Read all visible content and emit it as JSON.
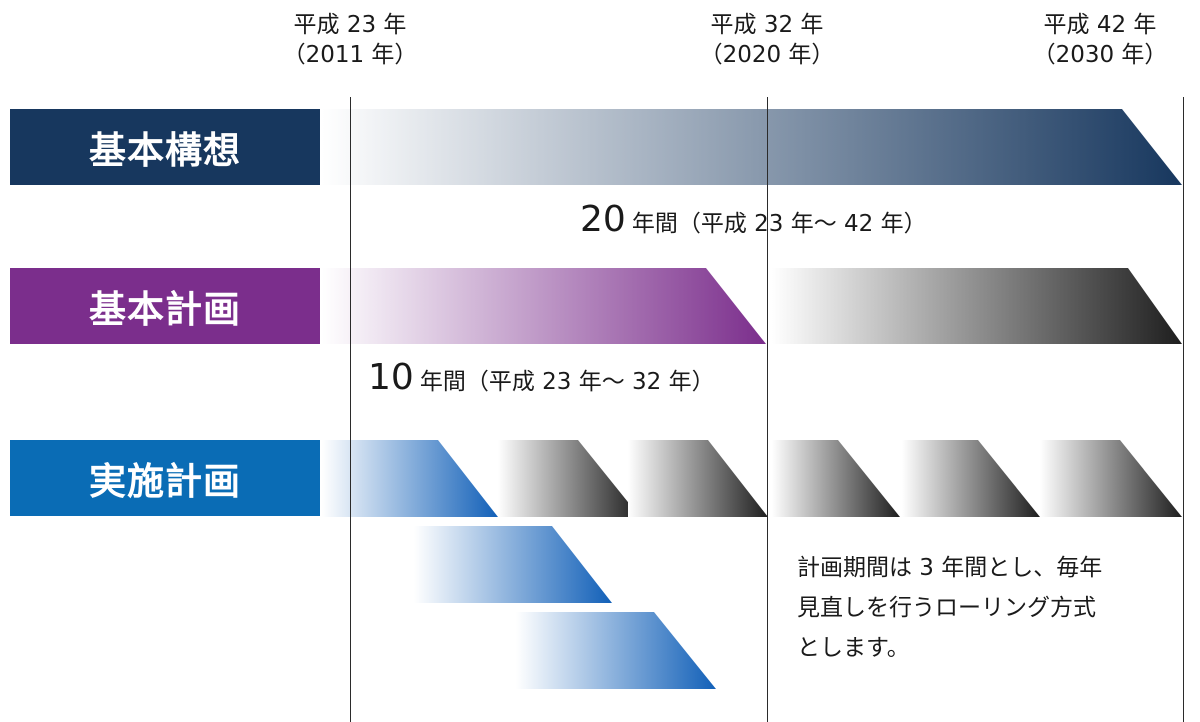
{
  "timeline": [
    {
      "era": "平成 23 年",
      "western": "（2011 年）"
    },
    {
      "era": "平成 32 年",
      "western": "（2020 年）"
    },
    {
      "era": "平成 42 年",
      "western": "（2030 年）"
    }
  ],
  "plans": [
    {
      "name": "基本構想",
      "color": "#17375e"
    },
    {
      "name": "基本計画",
      "color": "#7b2e8c"
    },
    {
      "name": "実施計画",
      "color": "#0a6cb5"
    }
  ],
  "periods": {
    "kihon_koso": {
      "years": "20",
      "text": "年間（平成 23 年～ 42 年）"
    },
    "kihon_keikaku": {
      "years": "10",
      "text": "年間（平成 23 年～ 32 年）"
    }
  },
  "note": {
    "lines": [
      "計画期間は 3 年間とし、毎年",
      "見直しを行うローリング方式",
      "とします。"
    ]
  }
}
